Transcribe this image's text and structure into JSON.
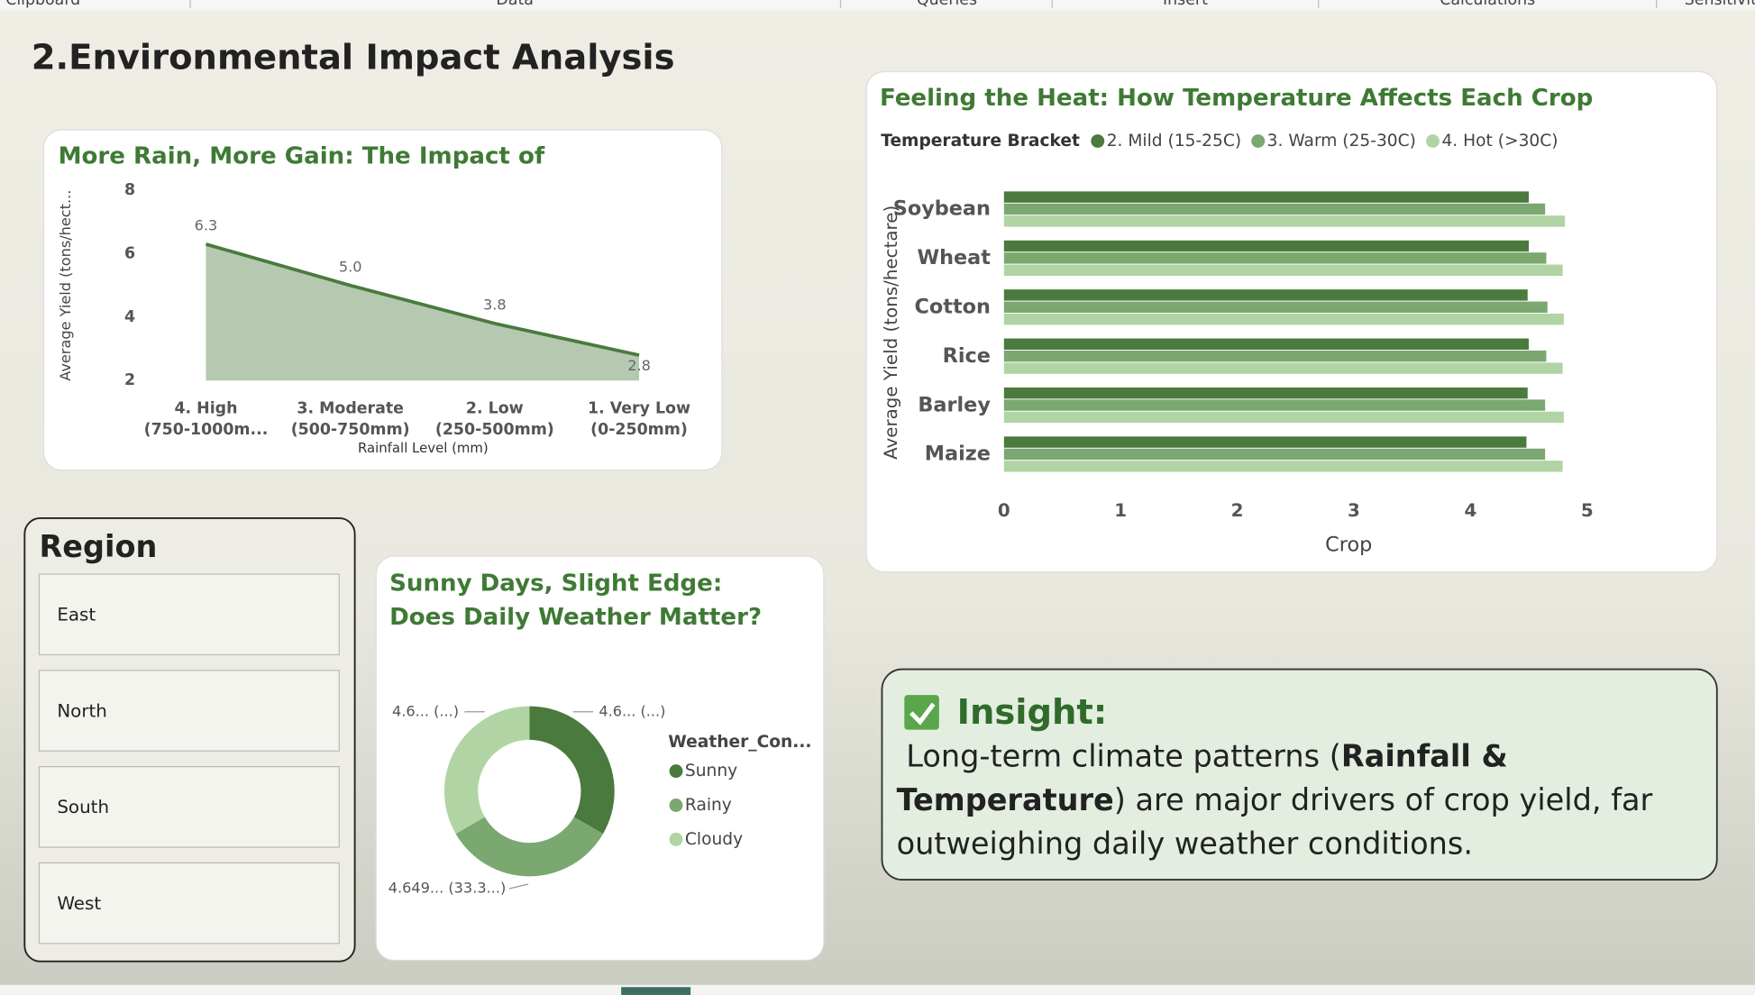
{
  "ribbon": [
    "Clipboard",
    "Data",
    "Queries",
    "Insert",
    "Calculations",
    "Sensitivity"
  ],
  "page_title": "2.Environmental Impact Analysis",
  "chart_data": [
    {
      "type": "area",
      "title": "More Rain, More Gain: The Impact of Precipitation",
      "categories": [
        "4. High\n(750-1000m...",
        "3. Moderate\n(500-750mm)",
        "2. Low\n(250-500mm)",
        "1. Very Low\n(0-250mm)"
      ],
      "values": [
        6.3,
        5.0,
        3.8,
        2.8
      ],
      "value_labels": [
        "6.3",
        "5.0",
        "3.8",
        "2.8"
      ],
      "x_label": "Rainfall Level (mm)",
      "y_label": "Average Yield (tons/hect...",
      "ylim": [
        2,
        8
      ],
      "yticks": [
        2,
        4,
        6,
        8
      ],
      "color": "#4a7a3d",
      "fill": "#b5c9b0",
      "grid": false
    },
    {
      "type": "hbar",
      "title": "Feeling the Heat: How Temperature Affects Each Crop",
      "legend_title": "Temperature Bracket",
      "categories": [
        "Soybean",
        "Wheat",
        "Cotton",
        "Rice",
        "Barley",
        "Maize"
      ],
      "series": [
        {
          "name": "2. Mild (15-25C)",
          "color": "#4a7a3d",
          "values": [
            4.5,
            4.5,
            4.49,
            4.5,
            4.49,
            4.48
          ]
        },
        {
          "name": "3. Warm (25-30C)",
          "color": "#7aa870",
          "values": [
            4.64,
            4.65,
            4.66,
            4.65,
            4.64,
            4.64
          ]
        },
        {
          "name": "4. Hot (>30C)",
          "color": "#b0d4a4",
          "values": [
            4.81,
            4.79,
            4.8,
            4.79,
            4.8,
            4.79
          ]
        }
      ],
      "x_label": "Crop",
      "y_label": "Average Yield (tons/hectare)",
      "xlim": [
        0,
        5
      ],
      "xticks": [
        0,
        1,
        2,
        3,
        4,
        5
      ],
      "grid": false
    },
    {
      "type": "donut",
      "title": "Sunny Days, Slight Edge: Does Daily Weather Matter?",
      "legend_title": "Weather_Con...",
      "categories": [
        "Sunny",
        "Rainy",
        "Cloudy"
      ],
      "values": [
        4.649,
        4.649,
        4.649
      ],
      "value_labels": [
        "4.6... (...)",
        "4.649... (33.3...)",
        "4.6... (...)"
      ],
      "colors": [
        "#4a7a3d",
        "#7aa870",
        "#b0d4a4"
      ]
    }
  ],
  "slicer": {
    "title": "Region",
    "items": [
      "East",
      "North",
      "South",
      "West"
    ]
  },
  "insight": {
    "heading": "Insight:",
    "body": [
      "Long-term climate patterns (",
      "Rainfall & Temperature",
      ") are major drivers of crop yield, far outweighing daily weather conditions."
    ]
  }
}
